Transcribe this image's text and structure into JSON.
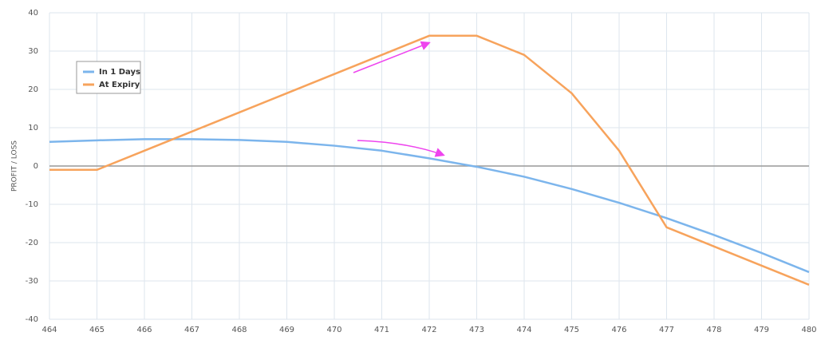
{
  "chart_data": {
    "type": "line",
    "y_label": "PROFIT / LOSS",
    "x": [
      464,
      465,
      466,
      467,
      468,
      469,
      470,
      471,
      472,
      473,
      474,
      475,
      476,
      477,
      478,
      479,
      480
    ],
    "series": [
      {
        "name": "In 1 Days",
        "color": "#7cb5ec",
        "values": [
          6.3,
          6.7,
          7.0,
          7.0,
          6.8,
          6.3,
          5.3,
          4.0,
          2.0,
          -0.2,
          -2.8,
          -6.0,
          -9.6,
          -13.6,
          -18.0,
          -22.7,
          -27.7
        ]
      },
      {
        "name": "At Expiry",
        "color": "#f7a35c",
        "values": [
          -1,
          -1,
          4,
          9,
          14,
          19,
          24,
          29,
          34,
          34,
          29,
          19,
          4,
          -16,
          -21,
          -26,
          -31
        ]
      }
    ],
    "xlim": [
      464,
      480
    ],
    "xticks": [
      464,
      465,
      466,
      467,
      468,
      469,
      470,
      471,
      472,
      473,
      474,
      475,
      476,
      477,
      478,
      479,
      480
    ],
    "ylim": [
      -40,
      40
    ],
    "yticks": [
      -40,
      -30,
      -20,
      -10,
      0,
      10,
      20,
      30,
      40
    ],
    "grid": true
  }
}
